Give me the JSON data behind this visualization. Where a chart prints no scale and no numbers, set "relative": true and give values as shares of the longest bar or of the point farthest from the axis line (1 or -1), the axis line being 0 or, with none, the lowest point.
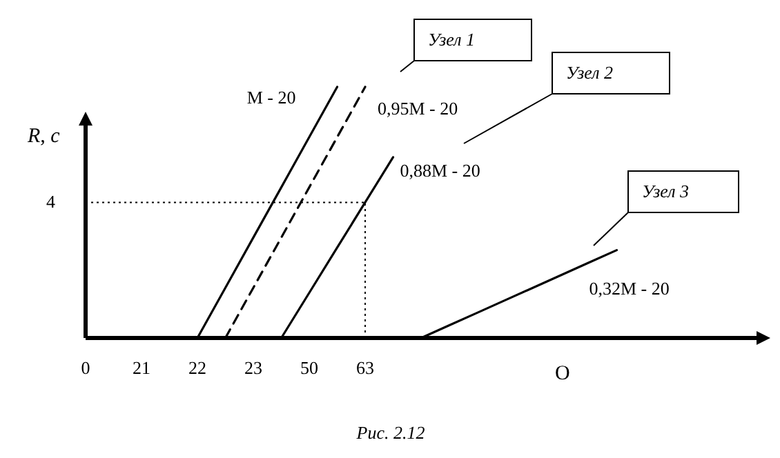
{
  "chart_data": {
    "type": "line",
    "xlabel": "O",
    "ylabel": "R, c",
    "relative": true,
    "categories": [
      "0",
      null,
      "21",
      null,
      "22",
      null,
      "23",
      null,
      "50",
      null,
      "63",
      null,
      null,
      null,
      null,
      null,
      null,
      null,
      null,
      null,
      null,
      null,
      null,
      null,
      null
    ],
    "series": [
      {
        "name": "M - 20",
        "color": "#000000",
        "values": [
          null,
          null,
          null,
          null,
          0,
          0.2,
          0.4,
          0.6,
          0.8,
          1,
          null,
          null,
          null,
          null,
          null,
          null,
          null,
          null,
          null,
          null,
          null,
          null,
          null,
          null,
          null
        ],
        "line_style": "solid"
      },
      {
        "name": "0,95M - 20",
        "color": "#000000",
        "values": [
          null,
          null,
          null,
          null,
          null,
          0,
          0.2,
          0.4,
          0.6,
          0.8,
          1,
          null,
          null,
          null,
          null,
          null,
          null,
          null,
          null,
          null,
          null,
          null,
          null,
          null,
          null
        ],
        "line_style": "dashed"
      },
      {
        "name": "0,88M - 20",
        "color": "#000000",
        "values": [
          null,
          null,
          null,
          null,
          null,
          null,
          null,
          0,
          0.18,
          0.36,
          0.54,
          0.72,
          null,
          null,
          null,
          null,
          null,
          null,
          null,
          null,
          null,
          null,
          null,
          null,
          null
        ],
        "line_style": "solid"
      },
      {
        "name": "0,32M - 20",
        "color": "#000000",
        "values": [
          null,
          null,
          null,
          null,
          null,
          null,
          null,
          null,
          null,
          null,
          null,
          null,
          0,
          0.05,
          0.1,
          0.15,
          0.2,
          0.25,
          0.3,
          0.35,
          null,
          null,
          null,
          null,
          null
        ],
        "line_style": "solid"
      }
    ],
    "ref_lines": [
      {
        "axis": "x",
        "value": "63",
        "line_style": "dotted"
      },
      {
        "axis": "y",
        "value": 0.54,
        "line_style": "dotted"
      }
    ],
    "annotations": [
      "Узел 1",
      "Узел 2",
      "Узел 3",
      "Рис. 2.12",
      "4"
    ]
  }
}
